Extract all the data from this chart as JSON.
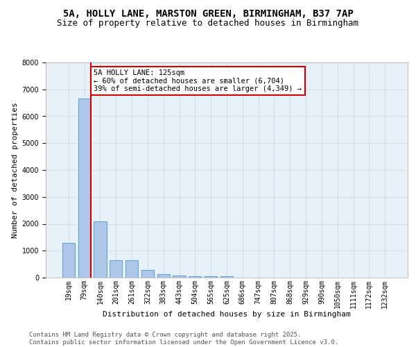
{
  "title_line1": "5A, HOLLY LANE, MARSTON GREEN, BIRMINGHAM, B37 7AP",
  "title_line2": "Size of property relative to detached houses in Birmingham",
  "xlabel": "Distribution of detached houses by size in Birmingham",
  "ylabel": "Number of detached properties",
  "bar_labels": [
    "19sqm",
    "79sqm",
    "140sqm",
    "201sqm",
    "261sqm",
    "322sqm",
    "383sqm",
    "443sqm",
    "504sqm",
    "565sqm",
    "625sqm",
    "686sqm",
    "747sqm",
    "807sqm",
    "868sqm",
    "929sqm",
    "990sqm",
    "1050sqm",
    "1111sqm",
    "1172sqm",
    "1232sqm"
  ],
  "bar_values": [
    1300,
    6650,
    2080,
    650,
    650,
    290,
    130,
    80,
    40,
    40,
    40,
    0,
    0,
    0,
    0,
    0,
    0,
    0,
    0,
    0,
    0
  ],
  "bar_color": "#aec6e8",
  "bar_edge_color": "#5a9fd4",
  "vertical_line_color": "#cc0000",
  "annotation_text": "5A HOLLY LANE: 125sqm\n← 60% of detached houses are smaller (6,704)\n39% of semi-detached houses are larger (4,349) →",
  "annotation_box_color": "#cc0000",
  "ylim": [
    0,
    8000
  ],
  "yticks": [
    0,
    1000,
    2000,
    3000,
    4000,
    5000,
    6000,
    7000,
    8000
  ],
  "grid_color": "#c8d8e8",
  "background_color": "#e8f0f8",
  "footer_line1": "Contains HM Land Registry data © Crown copyright and database right 2025.",
  "footer_line2": "Contains public sector information licensed under the Open Government Licence v3.0.",
  "title_fontsize": 10,
  "subtitle_fontsize": 9,
  "axis_label_fontsize": 8,
  "tick_fontsize": 7,
  "footer_fontsize": 6.5,
  "annotation_fontsize": 7.5
}
